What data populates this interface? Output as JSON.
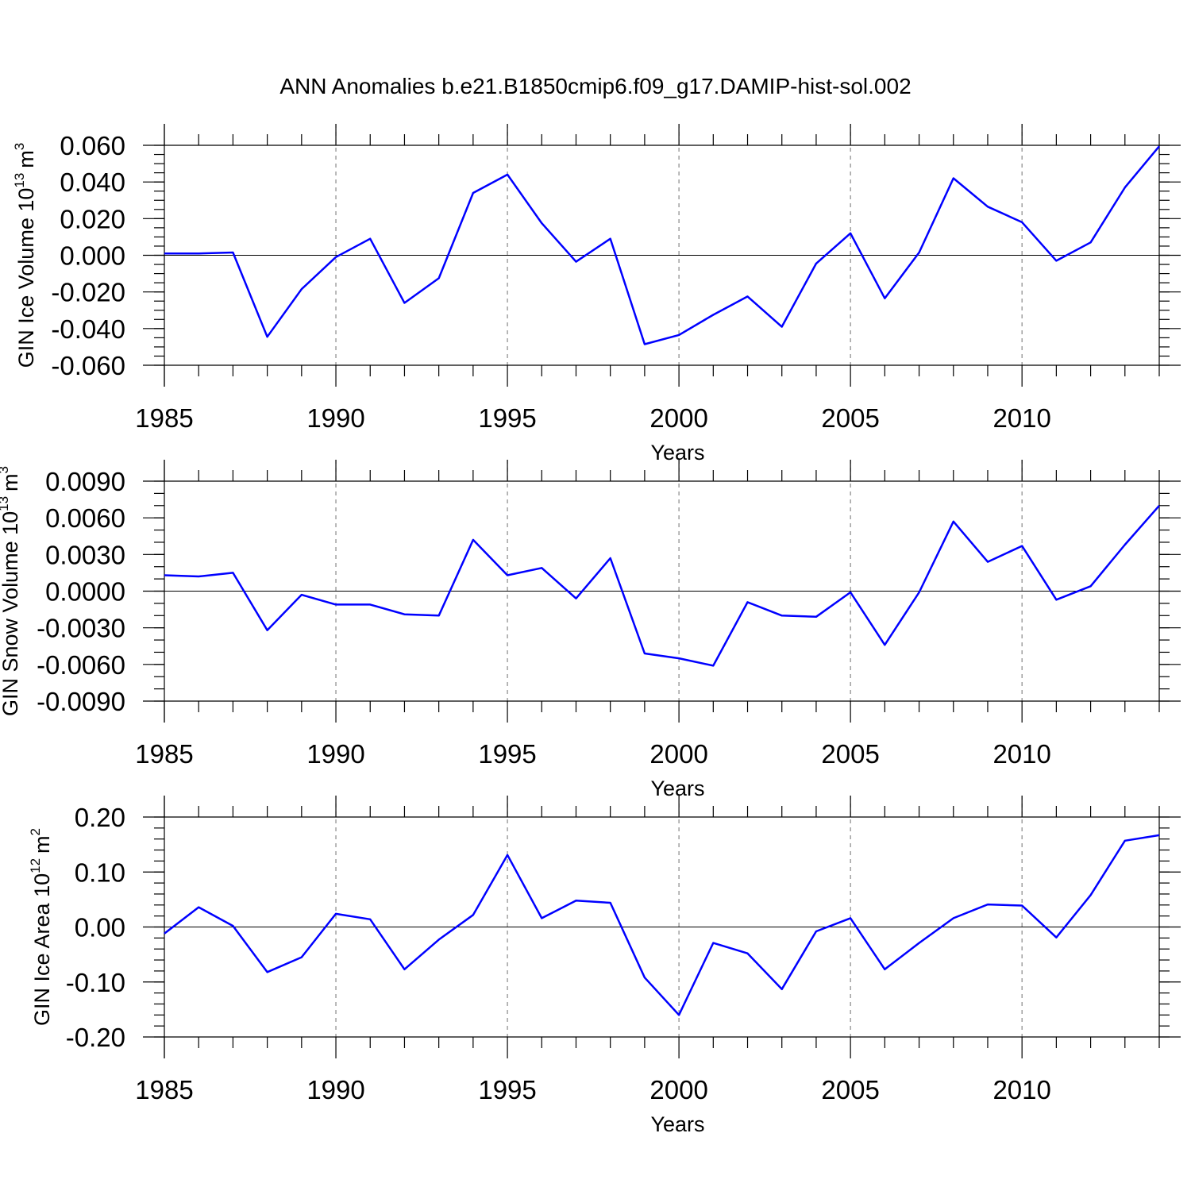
{
  "figure": {
    "title": "ANN Anomalies b.e21.B1850cmip6.f09_g17.DAMIP-hist-sol.002"
  },
  "chart_data": [
    {
      "type": "line",
      "title": "",
      "xlabel": "Years",
      "ylabel_text": "GIN Ice Volume 10",
      "ylabel_exponent": "13",
      "ylabel_unit": "m",
      "ylabel_unit_exponent": "3",
      "xlim": [
        1985,
        2014
      ],
      "ylim": [
        -0.06,
        0.06
      ],
      "x_major_ticks": [
        1985,
        1990,
        1995,
        2000,
        2005,
        2010
      ],
      "x_tick_labels": [
        "1985",
        "1990",
        "1995",
        "2000",
        "2005",
        "2010"
      ],
      "y_major_ticks": [
        -0.06,
        -0.04,
        -0.02,
        0.0,
        0.02,
        0.04,
        0.06
      ],
      "y_tick_labels": [
        "-0.060",
        "-0.040",
        "-0.020",
        "0.000",
        "0.020",
        "0.040",
        "0.060"
      ],
      "y_minor_step": 0.005,
      "grid_x_dashed": [
        1990,
        1995,
        2000,
        2005,
        2010
      ],
      "color": "#0000ff",
      "series": [
        {
          "name": "GIN Ice Volume",
          "x": [
            1985,
            1986,
            1987,
            1988,
            1989,
            1990,
            1991,
            1992,
            1993,
            1994,
            1995,
            1996,
            1997,
            1998,
            1999,
            2000,
            2001,
            2002,
            2003,
            2004,
            2005,
            2006,
            2007,
            2008,
            2009,
            2010,
            2011,
            2012,
            2013,
            2014
          ],
          "values": [
            0.001,
            0.001,
            0.0015,
            -0.0445,
            -0.0185,
            -0.001,
            0.009,
            -0.026,
            -0.0125,
            0.034,
            0.044,
            0.0175,
            -0.0035,
            0.009,
            -0.0485,
            -0.0435,
            -0.0325,
            -0.0225,
            -0.039,
            -0.0045,
            0.012,
            -0.0235,
            0.0015,
            0.042,
            0.0265,
            0.018,
            -0.003,
            0.007,
            0.037,
            0.0595
          ]
        }
      ]
    },
    {
      "type": "line",
      "title": "",
      "xlabel": "Years",
      "ylabel_text": "GIN Snow Volume 10",
      "ylabel_exponent": "13",
      "ylabel_unit": "m",
      "ylabel_unit_exponent": "3",
      "xlim": [
        1985,
        2014
      ],
      "ylim": [
        -0.009,
        0.009
      ],
      "x_major_ticks": [
        1985,
        1990,
        1995,
        2000,
        2005,
        2010
      ],
      "x_tick_labels": [
        "1985",
        "1990",
        "1995",
        "2000",
        "2005",
        "2010"
      ],
      "y_major_ticks": [
        -0.009,
        -0.006,
        -0.003,
        0.0,
        0.003,
        0.006,
        0.009
      ],
      "y_tick_labels": [
        "-0.0090",
        "-0.0060",
        "-0.0030",
        "0.0000",
        "0.0030",
        "0.0060",
        "0.0090"
      ],
      "y_minor_step": 0.001,
      "grid_x_dashed": [
        1990,
        1995,
        2000,
        2005,
        2010
      ],
      "color": "#0000ff",
      "series": [
        {
          "name": "GIN Snow Volume",
          "x": [
            1985,
            1986,
            1987,
            1988,
            1989,
            1990,
            1991,
            1992,
            1993,
            1994,
            1995,
            1996,
            1997,
            1998,
            1999,
            2000,
            2001,
            2002,
            2003,
            2004,
            2005,
            2006,
            2007,
            2008,
            2009,
            2010,
            2011,
            2012,
            2013,
            2014
          ],
          "values": [
            0.0013,
            0.0012,
            0.0015,
            -0.0032,
            -0.0003,
            -0.0011,
            -0.0011,
            -0.0019,
            -0.002,
            0.0042,
            0.0013,
            0.0019,
            -0.0006,
            0.0027,
            -0.0051,
            -0.0055,
            -0.0061,
            -0.0009,
            -0.002,
            -0.0021,
            -0.0001,
            -0.0044,
            -0.0001,
            0.0057,
            0.0024,
            0.0037,
            -0.0007,
            0.0004,
            0.0038,
            0.007
          ]
        }
      ]
    },
    {
      "type": "line",
      "title": "",
      "xlabel": "Years",
      "ylabel_text": "GIN Ice Area 10",
      "ylabel_exponent": "12",
      "ylabel_unit": "m",
      "ylabel_unit_exponent": "2",
      "xlim": [
        1985,
        2014
      ],
      "ylim": [
        -0.2,
        0.2
      ],
      "x_major_ticks": [
        1985,
        1990,
        1995,
        2000,
        2005,
        2010
      ],
      "x_tick_labels": [
        "1985",
        "1990",
        "1995",
        "2000",
        "2005",
        "2010"
      ],
      "y_major_ticks": [
        -0.2,
        -0.1,
        0.0,
        0.1,
        0.2
      ],
      "y_tick_labels": [
        "-0.20",
        "-0.10",
        "0.00",
        "0.10",
        "0.20"
      ],
      "y_minor_step": 0.02,
      "grid_x_dashed": [
        1990,
        1995,
        2000,
        2005,
        2010
      ],
      "color": "#0000ff",
      "series": [
        {
          "name": "GIN Ice Area",
          "x": [
            1985,
            1986,
            1987,
            1988,
            1989,
            1990,
            1991,
            1992,
            1993,
            1994,
            1995,
            1996,
            1997,
            1998,
            1999,
            2000,
            2001,
            2002,
            2003,
            2004,
            2005,
            2006,
            2007,
            2008,
            2009,
            2010,
            2011,
            2012,
            2013,
            2014
          ],
          "values": [
            -0.012,
            0.036,
            0.002,
            -0.082,
            -0.055,
            0.024,
            0.014,
            -0.077,
            -0.023,
            0.022,
            0.131,
            0.016,
            0.048,
            0.044,
            -0.092,
            -0.16,
            -0.029,
            -0.048,
            -0.113,
            -0.008,
            0.016,
            -0.077,
            -0.029,
            0.016,
            0.041,
            0.039,
            -0.019,
            0.058,
            0.157,
            0.167
          ]
        }
      ]
    }
  ]
}
